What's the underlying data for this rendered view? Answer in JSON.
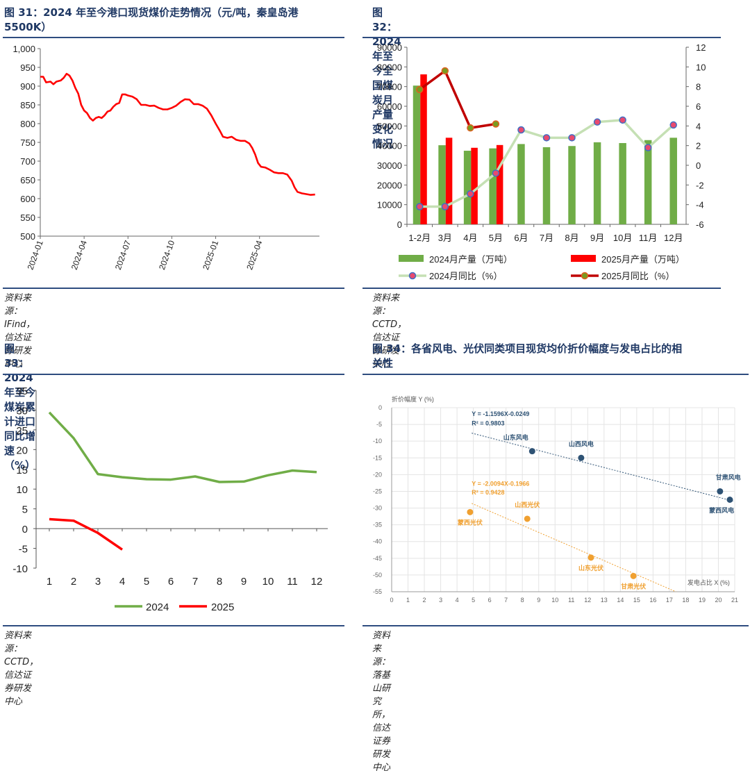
{
  "panels": {
    "p31": {
      "title": "图 31：2024 年至今港口现货煤价走势情况（元/吨，秦皇岛港5500K）",
      "title_line1": "图 31：2024 年至今港口现货煤价走势情况（元/吨，秦皇岛港",
      "title_line2": "5500K）",
      "source": "资料来源：IFind，信达证券研发中心"
    },
    "p32": {
      "title": "图 32：2024 年至今全国煤炭月产量变化情况",
      "source": "资料来源：CCTD，信达证券研发中心"
    },
    "p33": {
      "title": "图 33：2024 年至今煤炭累计进口同比增速（%）",
      "source": "资料来源：CCTD，信达证券研发中心"
    },
    "p34": {
      "title_line1": "图 34：各省风电、光伏同类项目现货均价折价幅度与发电占比的相",
      "title_line2": "关性",
      "source": "资料来源：落基山研究所，信达证券研发中心"
    }
  },
  "colors": {
    "red": "#ff0000",
    "green": "#70ad47",
    "darkred": "#c00000",
    "lightgreen": "#c5e0b4",
    "navy": "#1f3864",
    "wind": "#2e5274",
    "solar": "#f0a030"
  },
  "chart_data": [
    {
      "id": "chart31",
      "type": "line",
      "x_ticks": [
        "2024-01",
        "2024-04",
        "2024-07",
        "2024-10",
        "2025-01",
        "2025-04"
      ],
      "y_ticks": [
        "1,000",
        "950",
        "900",
        "850",
        "800",
        "750",
        "700",
        "650",
        "600",
        "550",
        "500"
      ],
      "ylim": [
        500,
        1000
      ],
      "grid": false,
      "series": [
        {
          "values_by_month_index": [
            [
              0,
              925
            ],
            [
              0.2,
              925
            ],
            [
              0.4,
              910
            ],
            [
              0.7,
              912
            ],
            [
              0.9,
              905
            ],
            [
              1.1,
              912
            ],
            [
              1.4,
              915
            ],
            [
              1.6,
              922
            ],
            [
              1.8,
              933
            ],
            [
              2.0,
              928
            ],
            [
              2.2,
              915
            ],
            [
              2.4,
              895
            ],
            [
              2.6,
              880
            ],
            [
              2.8,
              850
            ],
            [
              3.0,
              835
            ],
            [
              3.2,
              828
            ],
            [
              3.4,
              815
            ],
            [
              3.6,
              808
            ],
            [
              3.8,
              815
            ],
            [
              4.0,
              818
            ],
            [
              4.2,
              815
            ],
            [
              4.4,
              822
            ],
            [
              4.6,
              832
            ],
            [
              4.8,
              835
            ],
            [
              5.0,
              845
            ],
            [
              5.2,
              852
            ],
            [
              5.4,
              855
            ],
            [
              5.6,
              878
            ],
            [
              5.8,
              878
            ],
            [
              6.0,
              875
            ],
            [
              6.3,
              872
            ],
            [
              6.6,
              865
            ],
            [
              6.9,
              850
            ],
            [
              7.2,
              850
            ],
            [
              7.5,
              847
            ],
            [
              7.8,
              848
            ],
            [
              8.1,
              842
            ],
            [
              8.4,
              838
            ],
            [
              8.7,
              838
            ],
            [
              9.0,
              842
            ],
            [
              9.3,
              848
            ],
            [
              9.6,
              858
            ],
            [
              9.9,
              865
            ],
            [
              10.2,
              864
            ],
            [
              10.5,
              852
            ],
            [
              10.8,
              852
            ],
            [
              11.1,
              848
            ],
            [
              11.4,
              840
            ],
            [
              11.7,
              822
            ],
            [
              12.0,
              800
            ],
            [
              12.3,
              780
            ],
            [
              12.5,
              765
            ],
            [
              12.8,
              762
            ],
            [
              13.1,
              765
            ],
            [
              13.4,
              757
            ],
            [
              13.7,
              754
            ],
            [
              14.0,
              754
            ],
            [
              14.3,
              747
            ],
            [
              14.5,
              735
            ],
            [
              14.7,
              718
            ],
            [
              14.9,
              695
            ],
            [
              15.1,
              685
            ],
            [
              15.4,
              683
            ],
            [
              15.7,
              677
            ],
            [
              16.0,
              670
            ],
            [
              16.3,
              668
            ],
            [
              16.6,
              668
            ],
            [
              16.9,
              664
            ],
            [
              17.2,
              648
            ],
            [
              17.4,
              630
            ],
            [
              17.6,
              618
            ],
            [
              17.9,
              614
            ],
            [
              18.2,
              612
            ],
            [
              18.5,
              610
            ],
            [
              18.8,
              611
            ]
          ]
        }
      ]
    },
    {
      "id": "chart32",
      "type": "bar",
      "categories": [
        "1-2月",
        "3月",
        "4月",
        "5月",
        "6月",
        "7月",
        "8月",
        "9月",
        "10月",
        "11月",
        "12月"
      ],
      "y_ticks_left": [
        "90000",
        "80000",
        "70000",
        "60000",
        "50000",
        "40000",
        "30000",
        "20000",
        "10000",
        "0"
      ],
      "y_ticks_right": [
        "12",
        "10",
        "8",
        "6",
        "4",
        "2",
        "0",
        "-2",
        "-4",
        "-6"
      ],
      "ylim_left": [
        0,
        90000
      ],
      "ylim_right": [
        -6,
        12
      ],
      "series": [
        {
          "name": "2024月产量（万吨）",
          "kind": "bar",
          "values": [
            70500,
            40200,
            37400,
            38600,
            40800,
            39200,
            39800,
            41700,
            41300,
            42800,
            44000
          ]
        },
        {
          "name": "2025月产量（万吨）",
          "kind": "bar",
          "values": [
            76200,
            44000,
            38900,
            40300,
            null,
            null,
            null,
            null,
            null,
            null,
            null
          ]
        },
        {
          "name": "2024月同比（%）",
          "kind": "line",
          "axis": "right",
          "values": [
            -4.2,
            -4.2,
            -2.9,
            -0.8,
            3.6,
            2.8,
            2.8,
            4.4,
            4.6,
            1.8,
            4.1
          ]
        },
        {
          "name": "2025月同比（%）",
          "kind": "line",
          "axis": "right",
          "values": [
            7.7,
            9.6,
            3.8,
            4.2,
            null,
            null,
            null,
            null,
            null,
            null,
            null
          ]
        }
      ],
      "legend": [
        "2024月产量（万吨）",
        "2025月产量（万吨）",
        "2024月同比（%）",
        "2025月同比（%）"
      ]
    },
    {
      "id": "chart33",
      "type": "line",
      "categories": [
        "1",
        "2",
        "3",
        "4",
        "5",
        "6",
        "7",
        "8",
        "9",
        "10",
        "11",
        "12"
      ],
      "y_ticks": [
        "35",
        "30",
        "25",
        "20",
        "15",
        "10",
        "5",
        "0",
        "-5",
        "-10"
      ],
      "ylim": [
        -10,
        35
      ],
      "series": [
        {
          "name": "2024",
          "values": [
            29.4,
            22.9,
            13.8,
            13.0,
            12.5,
            12.4,
            13.2,
            11.8,
            11.9,
            13.5,
            14.7,
            14.3
          ]
        },
        {
          "name": "2025",
          "values": [
            2.4,
            2.0,
            -1.1,
            -5.3,
            null,
            null,
            null,
            null,
            null,
            null,
            null,
            null
          ]
        }
      ],
      "legend": [
        "2024",
        "2025"
      ]
    },
    {
      "id": "chart34",
      "type": "scatter",
      "ylabel": "折价幅度 Y (%)",
      "xlabel": "发电占比 X (%)",
      "x_ticks": [
        "0",
        "1",
        "2",
        "3",
        "4",
        "5",
        "6",
        "7",
        "8",
        "9",
        "10",
        "11",
        "12",
        "13",
        "14",
        "15",
        "16",
        "17",
        "18",
        "19",
        "20",
        "21"
      ],
      "y_ticks": [
        "0",
        "-5",
        "-10",
        "-15",
        "-20",
        "-25",
        "-30",
        "-35",
        "-40",
        "-45",
        "-50",
        "-55"
      ],
      "xlim": [
        0,
        21
      ],
      "ylim": [
        -55,
        0
      ],
      "grid": true,
      "series": [
        {
          "name": "风电",
          "points": [
            {
              "label": "山东风电",
              "x": 8.6,
              "y": -13.0
            },
            {
              "label": "山西风电",
              "x": 11.6,
              "y": -15.0
            },
            {
              "label": "甘肃风电",
              "x": 20.1,
              "y": -25.0
            },
            {
              "label": "蒙西风电",
              "x": 20.7,
              "y": -27.5
            }
          ],
          "trend": {
            "x0": 4.9,
            "y0": -7.6,
            "x1": 20.9,
            "y1": -27.9
          },
          "equation": "Y = -1.1596X-0.0249",
          "r2": "R² = 0.9803"
        },
        {
          "name": "光伏",
          "points": [
            {
              "label": "蒙西光伏",
              "x": 4.8,
              "y": -31.2
            },
            {
              "label": "山西光伏",
              "x": 8.3,
              "y": -33.2
            },
            {
              "label": "山东光伏",
              "x": 12.2,
              "y": -44.8
            },
            {
              "label": "甘肃光伏",
              "x": 14.8,
              "y": -50.3
            }
          ],
          "trend": {
            "x0": 4.9,
            "y0": -28.6,
            "x1": 17.4,
            "y1": -55.0
          },
          "equation": "Y = -2.0094X-0.1966",
          "r2": "R² = 0.9428"
        }
      ]
    }
  ]
}
